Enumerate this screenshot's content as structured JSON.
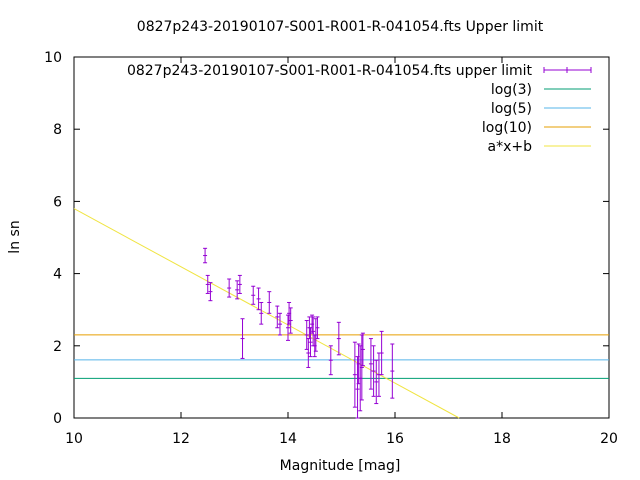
{
  "chart_data": {
    "type": "scatter",
    "title": "0827p243-20190107-S001-R001-R-041054.fts Upper limit",
    "xlabel": "Magnitude [mag]",
    "ylabel": "ln sn",
    "xlim": [
      10,
      20
    ],
    "ylim": [
      0,
      10
    ],
    "x_ticks": [
      10,
      12,
      14,
      16,
      18,
      20
    ],
    "y_ticks": [
      0,
      2,
      4,
      6,
      8,
      10
    ],
    "grid": false,
    "legend_position": "top-right",
    "series": [
      {
        "name": "0827p243-20190107-S001-R001-R-041054.fts upper limit",
        "kind": "errorbars",
        "color": "#9400d3",
        "points": [
          {
            "x": 12.45,
            "y": 4.5,
            "err": 0.2
          },
          {
            "x": 12.5,
            "y": 3.7,
            "err": 0.25
          },
          {
            "x": 12.55,
            "y": 3.5,
            "err": 0.25
          },
          {
            "x": 12.9,
            "y": 3.6,
            "err": 0.25
          },
          {
            "x": 13.05,
            "y": 3.55,
            "err": 0.25
          },
          {
            "x": 13.1,
            "y": 3.7,
            "err": 0.25
          },
          {
            "x": 13.15,
            "y": 2.2,
            "err": 0.55
          },
          {
            "x": 13.35,
            "y": 3.4,
            "err": 0.25
          },
          {
            "x": 13.45,
            "y": 3.3,
            "err": 0.3
          },
          {
            "x": 13.5,
            "y": 2.9,
            "err": 0.3
          },
          {
            "x": 13.65,
            "y": 3.2,
            "err": 0.3
          },
          {
            "x": 13.8,
            "y": 2.8,
            "err": 0.3
          },
          {
            "x": 13.85,
            "y": 2.6,
            "err": 0.3
          },
          {
            "x": 14.0,
            "y": 2.5,
            "err": 0.35
          },
          {
            "x": 14.02,
            "y": 2.9,
            "err": 0.3
          },
          {
            "x": 14.05,
            "y": 2.7,
            "err": 0.35
          },
          {
            "x": 14.35,
            "y": 2.3,
            "err": 0.4
          },
          {
            "x": 14.38,
            "y": 1.8,
            "err": 0.4
          },
          {
            "x": 14.4,
            "y": 2.5,
            "err": 0.3
          },
          {
            "x": 14.42,
            "y": 2.1,
            "err": 0.4
          },
          {
            "x": 14.45,
            "y": 2.6,
            "err": 0.25
          },
          {
            "x": 14.47,
            "y": 2.4,
            "err": 0.4
          },
          {
            "x": 14.5,
            "y": 2.0,
            "err": 0.3
          },
          {
            "x": 14.52,
            "y": 2.3,
            "err": 0.45
          },
          {
            "x": 14.55,
            "y": 2.5,
            "err": 0.3
          },
          {
            "x": 14.8,
            "y": 1.6,
            "err": 0.4
          },
          {
            "x": 14.95,
            "y": 2.2,
            "err": 0.45
          },
          {
            "x": 15.25,
            "y": 1.2,
            "err": 0.9
          },
          {
            "x": 15.3,
            "y": 0.8,
            "err": 0.9
          },
          {
            "x": 15.32,
            "y": 1.5,
            "err": 0.55
          },
          {
            "x": 15.35,
            "y": 1.1,
            "err": 0.9
          },
          {
            "x": 15.38,
            "y": 1.4,
            "err": 0.9
          },
          {
            "x": 15.4,
            "y": 1.9,
            "err": 0.45
          },
          {
            "x": 15.55,
            "y": 1.5,
            "err": 0.7
          },
          {
            "x": 15.6,
            "y": 1.3,
            "err": 0.7
          },
          {
            "x": 15.65,
            "y": 1.0,
            "err": 0.6
          },
          {
            "x": 15.7,
            "y": 1.2,
            "err": 0.6
          },
          {
            "x": 15.75,
            "y": 1.8,
            "err": 0.6
          },
          {
            "x": 15.95,
            "y": 1.3,
            "err": 0.75
          }
        ]
      },
      {
        "name": "log(3)",
        "kind": "hline",
        "color": "#009e73",
        "y": 1.0986
      },
      {
        "name": "log(5)",
        "kind": "hline",
        "color": "#56b4e9",
        "y": 1.6094
      },
      {
        "name": "log(10)",
        "kind": "hline",
        "color": "#e69f00",
        "y": 2.3026
      },
      {
        "name": "a*x+b",
        "kind": "line",
        "color": "#f0e442",
        "points": [
          {
            "x": 10,
            "y": 5.8
          },
          {
            "x": 17.2,
            "y": 0
          }
        ]
      }
    ]
  }
}
